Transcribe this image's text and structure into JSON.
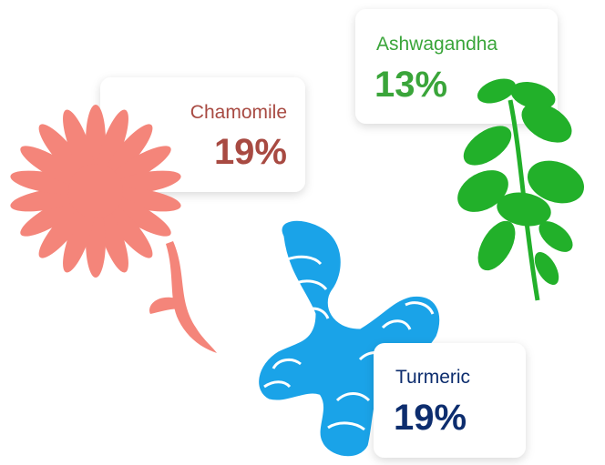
{
  "items": [
    {
      "name": "Chamomile",
      "value": "19%"
    },
    {
      "name": "Ashwagandha",
      "value": "13%"
    },
    {
      "name": "Turmeric",
      "value": "19%"
    }
  ]
}
